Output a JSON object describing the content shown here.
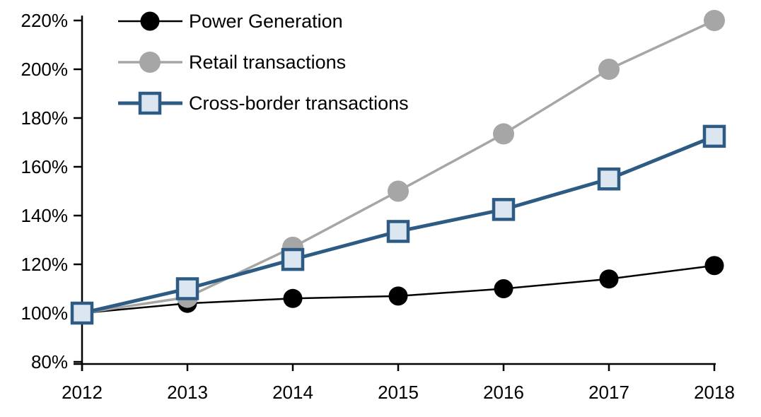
{
  "chart_data": {
    "type": "line",
    "title": "",
    "xlabel": "",
    "ylabel": "",
    "x_labels": [
      "2012",
      "2013",
      "2014",
      "2015",
      "2016",
      "2017",
      "2018"
    ],
    "y_tick_labels": [
      "80%",
      "100%",
      "120%",
      "140%",
      "160%",
      "180%",
      "200%",
      "220%"
    ],
    "ylim": [
      80,
      220
    ],
    "ytick_step": 20,
    "grid": false,
    "legend_position": "top-left-inside",
    "axis_color": "#000000",
    "background": "#FFFFFF",
    "series": [
      {
        "name": "Power Generation",
        "values": [
          100,
          104,
          106,
          107,
          110,
          114,
          119.5
        ],
        "color": "#000000",
        "marker": "circle",
        "marker_fill": "#000000",
        "marker_radius": 13.5,
        "line_width": 2.5
      },
      {
        "name": "Retail transactions",
        "values": [
          100,
          106.5,
          127,
          150,
          173.5,
          200,
          220
        ],
        "color": "#A6A6A6",
        "marker": "circle",
        "marker_fill": "#A6A6A6",
        "marker_radius": 15,
        "line_width": 3.5
      },
      {
        "name": "Cross-border transactions",
        "values": [
          100,
          110,
          122,
          133.5,
          142.5,
          155,
          172.5
        ],
        "color": "#2D5B84",
        "marker": "square",
        "marker_fill": "#DCE6F1",
        "marker_size": 28,
        "marker_border_width": 4.5,
        "line_width": 5
      }
    ]
  }
}
